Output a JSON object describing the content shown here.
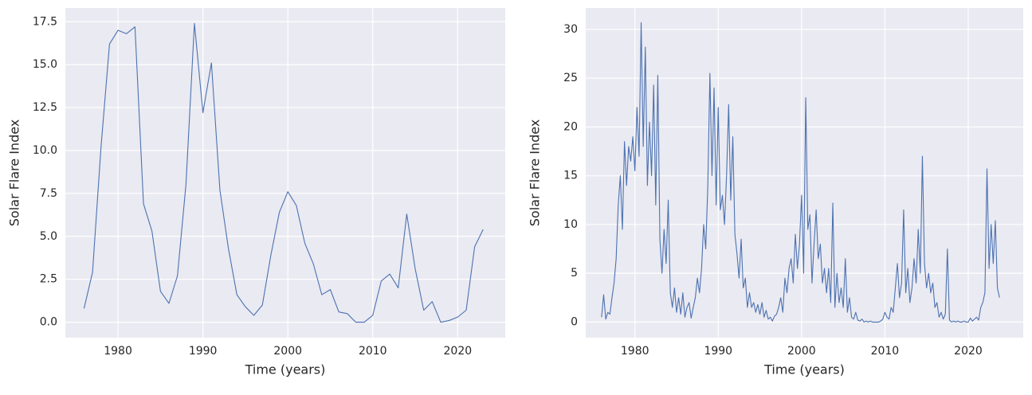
{
  "chart_data": [
    {
      "type": "line",
      "xlabel": "Time (years)",
      "ylabel": "Solar Flare Index",
      "grid": true,
      "xlim": [
        1973.8,
        2025.6
      ],
      "ylim": [
        -0.9,
        18.3
      ],
      "xticks": [
        1980,
        1990,
        2000,
        2010,
        2020
      ],
      "yticks": [
        {
          "value": 0,
          "label": "0.0"
        },
        2.5,
        {
          "value": 5,
          "label": "5.0"
        },
        7.5,
        {
          "value": 10,
          "label": "10.0"
        },
        12.5,
        {
          "value": 15,
          "label": "15.0"
        },
        17.5
      ],
      "series": [
        {
          "color": "#4c72b0",
          "x": [
            1976,
            1977,
            1978,
            1979,
            1980,
            1981,
            1982,
            1983,
            1984,
            1985,
            1986,
            1987,
            1988,
            1989,
            1990,
            1991,
            1992,
            1993,
            1994,
            1995,
            1996,
            1997,
            1998,
            1999,
            2000,
            2001,
            2002,
            2003,
            2004,
            2005,
            2006,
            2007,
            2008,
            2009,
            2010,
            2011,
            2012,
            2013,
            2014,
            2015,
            2016,
            2017,
            2018,
            2019,
            2020,
            2021,
            2022,
            2023
          ],
          "values": [
            0.8,
            2.9,
            10.2,
            16.2,
            17.0,
            16.8,
            17.2,
            6.9,
            5.3,
            1.8,
            1.1,
            2.7,
            8.0,
            17.4,
            12.2,
            15.1,
            7.7,
            4.3,
            1.6,
            0.9,
            0.4,
            1.0,
            3.9,
            6.4,
            7.6,
            6.8,
            4.6,
            3.4,
            1.6,
            1.9,
            0.6,
            0.5,
            0.0,
            0.0,
            0.4,
            2.4,
            2.8,
            2.0,
            6.3,
            3.1,
            0.7,
            1.2,
            0.0,
            0.1,
            0.3,
            0.7,
            4.4,
            5.4
          ]
        }
      ]
    },
    {
      "type": "line",
      "xlabel": "Time (years)",
      "ylabel": "Solar Flare Index",
      "grid": true,
      "xlim": [
        1974.1,
        2026.6
      ],
      "ylim": [
        -1.6,
        32.2
      ],
      "xticks": [
        1980,
        1990,
        2000,
        2010,
        2020
      ],
      "yticks": [
        0,
        5,
        10,
        15,
        20,
        25,
        30
      ],
      "series": [
        {
          "color": "#4c72b0",
          "x": [
            1976,
            1976.25,
            1976.5,
            1976.75,
            1977,
            1977.25,
            1977.5,
            1977.75,
            1978,
            1978.25,
            1978.5,
            1978.75,
            1979,
            1979.25,
            1979.5,
            1979.75,
            1980,
            1980.25,
            1980.5,
            1980.75,
            1981,
            1981.25,
            1981.5,
            1981.75,
            1982,
            1982.25,
            1982.5,
            1982.75,
            1983,
            1983.25,
            1983.5,
            1983.75,
            1984,
            1984.25,
            1984.5,
            1984.75,
            1985,
            1985.25,
            1985.5,
            1985.75,
            1986,
            1986.25,
            1986.5,
            1986.75,
            1987,
            1987.25,
            1987.5,
            1987.75,
            1988,
            1988.25,
            1988.5,
            1988.75,
            1989,
            1989.25,
            1989.5,
            1989.75,
            1990,
            1990.25,
            1990.5,
            1990.75,
            1991,
            1991.25,
            1991.5,
            1991.75,
            1992,
            1992.25,
            1992.5,
            1992.75,
            1993,
            1993.25,
            1993.5,
            1993.75,
            1994,
            1994.25,
            1994.5,
            1994.75,
            1995,
            1995.25,
            1995.5,
            1995.75,
            1996,
            1996.25,
            1996.5,
            1996.75,
            1997,
            1997.25,
            1997.5,
            1997.75,
            1998,
            1998.25,
            1998.5,
            1998.75,
            1999,
            1999.25,
            1999.5,
            1999.75,
            2000,
            2000.25,
            2000.5,
            2000.75,
            2001,
            2001.25,
            2001.5,
            2001.75,
            2002,
            2002.25,
            2002.5,
            2002.75,
            2003,
            2003.25,
            2003.5,
            2003.75,
            2004,
            2004.25,
            2004.5,
            2004.75,
            2005,
            2005.25,
            2005.5,
            2005.75,
            2006,
            2006.25,
            2006.5,
            2006.75,
            2007,
            2007.25,
            2007.5,
            2007.75,
            2008,
            2008.25,
            2008.5,
            2008.75,
            2009,
            2009.25,
            2009.5,
            2009.75,
            2010,
            2010.25,
            2010.5,
            2010.75,
            2011,
            2011.25,
            2011.5,
            2011.75,
            2012,
            2012.25,
            2012.5,
            2012.75,
            2013,
            2013.25,
            2013.5,
            2013.75,
            2014,
            2014.25,
            2014.5,
            2014.75,
            2015,
            2015.25,
            2015.5,
            2015.75,
            2016,
            2016.25,
            2016.5,
            2016.75,
            2017,
            2017.25,
            2017.5,
            2017.75,
            2018,
            2018.25,
            2018.5,
            2018.75,
            2019,
            2019.25,
            2019.5,
            2019.75,
            2020,
            2020.25,
            2020.5,
            2020.75,
            2021,
            2021.25,
            2021.5,
            2021.75,
            2022,
            2022.25,
            2022.5,
            2022.75,
            2023,
            2023.25,
            2023.5,
            2023.75
          ],
          "values": [
            0.5,
            2.8,
            0.3,
            1.0,
            0.8,
            2.5,
            4.0,
            6.5,
            12.0,
            15.0,
            9.5,
            18.5,
            14.0,
            18.0,
            16.5,
            19.0,
            15.5,
            22.0,
            17.0,
            30.7,
            18.0,
            28.2,
            14.0,
            20.5,
            15.0,
            24.3,
            12.0,
            25.3,
            8.5,
            5.0,
            9.5,
            6.0,
            12.5,
            3.0,
            1.5,
            3.5,
            1.0,
            2.5,
            0.8,
            3.0,
            0.5,
            1.5,
            2.0,
            0.4,
            1.5,
            2.5,
            4.5,
            3.0,
            5.5,
            10.0,
            7.5,
            14.0,
            25.5,
            15.0,
            24.0,
            12.0,
            22.0,
            11.5,
            13.0,
            10.0,
            15.0,
            22.3,
            12.5,
            19.0,
            9.0,
            7.0,
            4.5,
            8.5,
            3.5,
            4.5,
            1.5,
            3.0,
            1.5,
            2.0,
            1.0,
            1.8,
            0.8,
            2.0,
            0.5,
            1.2,
            0.3,
            0.5,
            0.1,
            0.6,
            0.8,
            1.5,
            2.5,
            1.0,
            4.5,
            3.0,
            5.5,
            6.5,
            4.0,
            9.0,
            5.5,
            8.0,
            13.0,
            5.0,
            23.0,
            9.5,
            11.0,
            4.0,
            8.0,
            11.5,
            6.5,
            8.0,
            4.0,
            5.5,
            3.0,
            5.5,
            2.0,
            12.2,
            1.5,
            5.0,
            2.0,
            3.5,
            1.5,
            6.5,
            1.0,
            2.5,
            0.5,
            0.3,
            1.0,
            0.2,
            0.1,
            0.3,
            0.0,
            0.1,
            0.0,
            0.1,
            0.0,
            0.0,
            0.0,
            0.0,
            0.1,
            0.3,
            1.0,
            0.5,
            0.3,
            1.5,
            1.0,
            3.5,
            6.0,
            2.5,
            4.0,
            11.5,
            3.0,
            5.5,
            2.0,
            3.5,
            6.5,
            4.0,
            9.5,
            5.0,
            17.0,
            6.0,
            3.5,
            5.0,
            3.0,
            4.0,
            1.5,
            2.0,
            0.5,
            1.0,
            0.3,
            0.8,
            7.5,
            0.2,
            0.0,
            0.1,
            0.0,
            0.1,
            0.0,
            0.0,
            0.1,
            0.0,
            0.0,
            0.4,
            0.1,
            0.3,
            0.5,
            0.2,
            1.5,
            2.0,
            3.0,
            15.7,
            5.5,
            10.0,
            6.0,
            10.4,
            3.5,
            2.5
          ]
        }
      ]
    }
  ]
}
